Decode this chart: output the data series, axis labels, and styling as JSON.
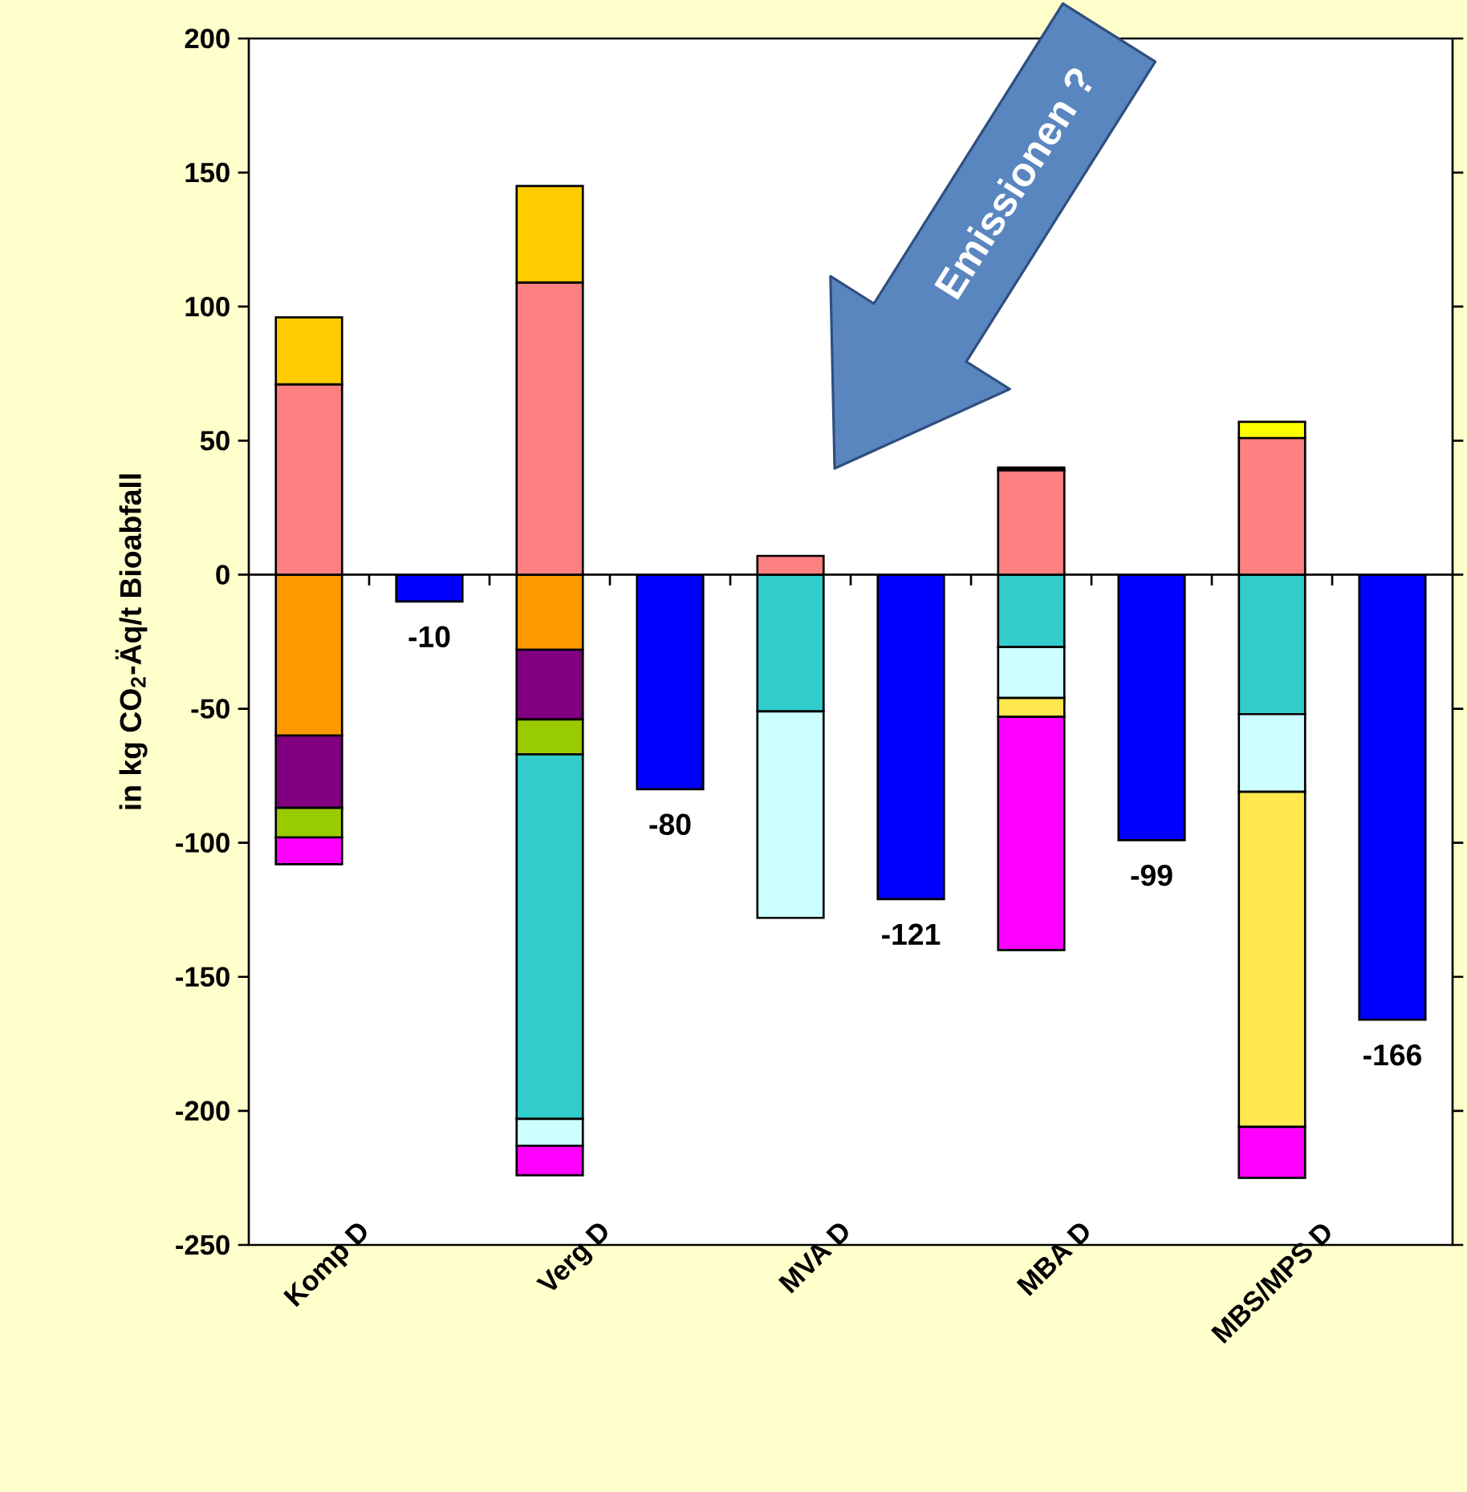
{
  "chart_data": {
    "type": "bar",
    "stacked": true,
    "categories": [
      "Komp D",
      null,
      "Verg D",
      null,
      "MVA D",
      null,
      "MBA D",
      null,
      "MBS/MPS D",
      null
    ],
    "ylabel": "in kg CO$_{2}$-Äq/t Bioabfall",
    "ylim": [
      -250,
      200
    ],
    "yticks": [
      -250,
      -200,
      -150,
      -100,
      -50,
      0,
      50,
      100,
      150,
      200
    ],
    "annotations": [
      "Emissionen ?"
    ],
    "series": [
      {
        "color": "#ff8080",
        "values": [
          71,
          null,
          109,
          null,
          7,
          null,
          39,
          null,
          51,
          null
        ]
      },
      {
        "color": "#ffcc00",
        "values": [
          25,
          null,
          36,
          null,
          null,
          null,
          null,
          null,
          null,
          null
        ]
      },
      {
        "color": "#ffff00",
        "values": [
          null,
          null,
          null,
          null,
          null,
          null,
          null,
          null,
          6,
          null
        ]
      },
      {
        "color": "#000000",
        "values": [
          null,
          null,
          null,
          null,
          null,
          null,
          1,
          null,
          null,
          null
        ]
      },
      {
        "color": "#ff9900",
        "values": [
          -60,
          null,
          -28,
          null,
          null,
          null,
          null,
          null,
          null,
          null
        ]
      },
      {
        "color": "#800080",
        "values": [
          -27,
          null,
          -26,
          null,
          null,
          null,
          null,
          null,
          null,
          null
        ]
      },
      {
        "color": "#99cc00",
        "values": [
          -11,
          null,
          -13,
          null,
          null,
          null,
          null,
          null,
          null,
          null
        ]
      },
      {
        "color": "#33cccc",
        "values": [
          null,
          null,
          -136,
          null,
          -51,
          null,
          -27,
          null,
          -52,
          null
        ]
      },
      {
        "color": "#ccffff",
        "values": [
          null,
          null,
          -10,
          null,
          -77,
          null,
          -19,
          null,
          -29,
          null
        ]
      },
      {
        "color": "#ffe84d",
        "values": [
          null,
          null,
          null,
          null,
          null,
          null,
          -7,
          null,
          -125,
          null
        ]
      },
      {
        "color": "#ff00ff",
        "values": [
          -10,
          null,
          -11,
          null,
          null,
          null,
          -87,
          null,
          -19,
          null
        ]
      },
      {
        "color": "#0000ff",
        "values": [
          null,
          -10,
          null,
          -80,
          null,
          -121,
          null,
          -99,
          null,
          -166
        ],
        "value_labels": [
          null,
          "-10",
          null,
          "-80",
          null,
          "-121",
          null,
          "-99",
          null,
          "-166"
        ]
      }
    ]
  }
}
